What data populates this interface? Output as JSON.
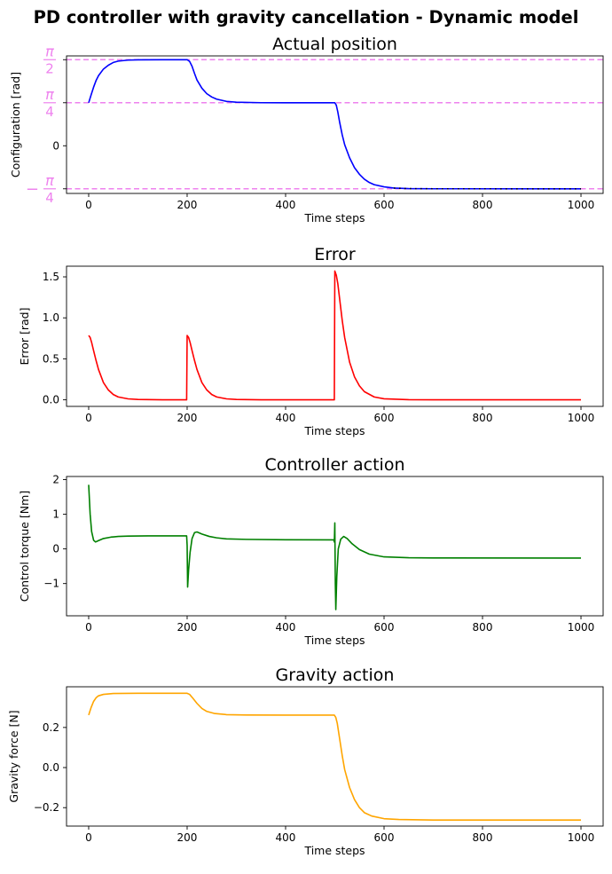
{
  "figure": {
    "suptitle": "PD controller with gravity cancellation - Dynamic model"
  },
  "colors": {
    "position": "#0000ff",
    "error": "#ff0000",
    "control": "#008000",
    "gravity": "#ffa500",
    "reference": "#ee82ee"
  },
  "chart_data": [
    {
      "id": "position",
      "type": "line",
      "title": "Actual position",
      "xlabel": "Time steps",
      "ylabel": "Configuration [rad]",
      "xlim": [
        -45,
        1045
      ],
      "ylim": [
        -0.87,
        1.64
      ],
      "xticks": [
        0,
        200,
        400,
        600,
        800,
        1000
      ],
      "yticks": [
        {
          "value": 1.5708,
          "label": "π/2",
          "fraction": true,
          "num": "π",
          "den": "2",
          "sign": ""
        },
        {
          "value": 0.7854,
          "label": "π/4",
          "fraction": true,
          "num": "π",
          "den": "4",
          "sign": ""
        },
        {
          "value": 0,
          "label": "0",
          "fraction": false
        },
        {
          "value": -0.7854,
          "label": "−π/4",
          "fraction": true,
          "num": "π",
          "den": "4",
          "sign": "−"
        }
      ],
      "reference_lines": [
        1.5708,
        0.7854,
        -0.7854
      ],
      "series": [
        {
          "color_key": "position",
          "points": [
            [
              0,
              0.785
            ],
            [
              5,
              0.93
            ],
            [
              10,
              1.07
            ],
            [
              15,
              1.19
            ],
            [
              20,
              1.28
            ],
            [
              30,
              1.4
            ],
            [
              40,
              1.47
            ],
            [
              50,
              1.52
            ],
            [
              60,
              1.545
            ],
            [
              80,
              1.563
            ],
            [
              100,
              1.568
            ],
            [
              150,
              1.5708
            ],
            [
              200,
              1.5708
            ],
            [
              205,
              1.54
            ],
            [
              210,
              1.45
            ],
            [
              215,
              1.32
            ],
            [
              220,
              1.2
            ],
            [
              230,
              1.05
            ],
            [
              240,
              0.95
            ],
            [
              250,
              0.89
            ],
            [
              260,
              0.85
            ],
            [
              280,
              0.81
            ],
            [
              300,
              0.795
            ],
            [
              350,
              0.786
            ],
            [
              400,
              0.7854
            ],
            [
              500,
              0.7854
            ],
            [
              503,
              0.74
            ],
            [
              506,
              0.62
            ],
            [
              510,
              0.42
            ],
            [
              515,
              0.2
            ],
            [
              520,
              0.02
            ],
            [
              530,
              -0.22
            ],
            [
              540,
              -0.4
            ],
            [
              550,
              -0.52
            ],
            [
              560,
              -0.61
            ],
            [
              570,
              -0.67
            ],
            [
              580,
              -0.71
            ],
            [
              600,
              -0.75
            ],
            [
              620,
              -0.772
            ],
            [
              650,
              -0.782
            ],
            [
              700,
              -0.785
            ],
            [
              1000,
              -0.7854
            ]
          ]
        }
      ]
    },
    {
      "id": "error",
      "type": "line",
      "title": "Error",
      "xlabel": "Time steps",
      "ylabel": "Error [rad]",
      "xlim": [
        -45,
        1045
      ],
      "ylim": [
        -0.08,
        1.63
      ],
      "xticks": [
        0,
        200,
        400,
        600,
        800,
        1000
      ],
      "yticks": [
        {
          "value": 0.0,
          "label": "0.0"
        },
        {
          "value": 0.5,
          "label": "0.5"
        },
        {
          "value": 1.0,
          "label": "1.0"
        },
        {
          "value": 1.5,
          "label": "1.5"
        }
      ],
      "series": [
        {
          "color_key": "error",
          "points": [
            [
              0,
              0.785
            ],
            [
              3,
              0.76
            ],
            [
              6,
              0.7
            ],
            [
              10,
              0.6
            ],
            [
              15,
              0.48
            ],
            [
              20,
              0.37
            ],
            [
              30,
              0.21
            ],
            [
              40,
              0.12
            ],
            [
              50,
              0.065
            ],
            [
              60,
              0.035
            ],
            [
              80,
              0.012
            ],
            [
              100,
              0.005
            ],
            [
              150,
              0.001
            ],
            [
              199,
              0.0
            ],
            [
              200,
              0.785
            ],
            [
              203,
              0.76
            ],
            [
              206,
              0.7
            ],
            [
              210,
              0.6
            ],
            [
              215,
              0.48
            ],
            [
              220,
              0.37
            ],
            [
              230,
              0.21
            ],
            [
              240,
              0.12
            ],
            [
              250,
              0.065
            ],
            [
              260,
              0.035
            ],
            [
              280,
              0.012
            ],
            [
              300,
              0.005
            ],
            [
              350,
              0.001
            ],
            [
              499,
              0.0
            ],
            [
              500,
              1.5708
            ],
            [
              503,
              1.52
            ],
            [
              506,
              1.42
            ],
            [
              510,
              1.22
            ],
            [
              515,
              0.97
            ],
            [
              520,
              0.76
            ],
            [
              530,
              0.46
            ],
            [
              540,
              0.28
            ],
            [
              550,
              0.17
            ],
            [
              560,
              0.1
            ],
            [
              580,
              0.035
            ],
            [
              600,
              0.013
            ],
            [
              650,
              0.002
            ],
            [
              700,
              0.0
            ],
            [
              1000,
              0.0
            ]
          ]
        }
      ]
    },
    {
      "id": "control",
      "type": "line",
      "title": "Controller action",
      "xlabel": "Time steps",
      "ylabel": "Control torque [Nm]",
      "xlim": [
        -45,
        1045
      ],
      "ylim": [
        -1.93,
        2.09
      ],
      "xticks": [
        0,
        200,
        400,
        600,
        800,
        1000
      ],
      "yticks": [
        {
          "value": -1,
          "label": "−1"
        },
        {
          "value": 0,
          "label": "0"
        },
        {
          "value": 1,
          "label": "1"
        },
        {
          "value": 2,
          "label": "2"
        }
      ],
      "series": [
        {
          "color_key": "control",
          "points": [
            [
              0,
              1.85
            ],
            [
              3,
              1.0
            ],
            [
              6,
              0.5
            ],
            [
              10,
              0.25
            ],
            [
              14,
              0.2
            ],
            [
              20,
              0.24
            ],
            [
              30,
              0.3
            ],
            [
              45,
              0.34
            ],
            [
              60,
              0.36
            ],
            [
              80,
              0.37
            ],
            [
              120,
              0.375
            ],
            [
              199,
              0.375
            ],
            [
              200,
              0.1
            ],
            [
              201,
              -1.1
            ],
            [
              203,
              -0.6
            ],
            [
              206,
              -0.1
            ],
            [
              210,
              0.3
            ],
            [
              215,
              0.47
            ],
            [
              220,
              0.49
            ],
            [
              230,
              0.43
            ],
            [
              245,
              0.36
            ],
            [
              260,
              0.32
            ],
            [
              280,
              0.29
            ],
            [
              320,
              0.275
            ],
            [
              400,
              0.265
            ],
            [
              498,
              0.26
            ],
            [
              499,
              0.2
            ],
            [
              500,
              0.75
            ],
            [
              501,
              -1.0
            ],
            [
              502,
              -1.75
            ],
            [
              504,
              -0.8
            ],
            [
              507,
              0.0
            ],
            [
              512,
              0.28
            ],
            [
              518,
              0.36
            ],
            [
              525,
              0.3
            ],
            [
              535,
              0.15
            ],
            [
              550,
              -0.02
            ],
            [
              570,
              -0.15
            ],
            [
              600,
              -0.23
            ],
            [
              650,
              -0.255
            ],
            [
              700,
              -0.26
            ],
            [
              1000,
              -0.265
            ]
          ]
        }
      ]
    },
    {
      "id": "gravity",
      "type": "line",
      "title": "Gravity action",
      "xlabel": "Time steps",
      "ylabel": "Gravity force [N]",
      "xlim": [
        -45,
        1045
      ],
      "ylim": [
        -0.292,
        0.403
      ],
      "xticks": [
        0,
        200,
        400,
        600,
        800,
        1000
      ],
      "yticks": [
        {
          "value": -0.2,
          "label": "−0.2"
        },
        {
          "value": 0.0,
          "label": "0.0"
        },
        {
          "value": 0.2,
          "label": "0.2"
        }
      ],
      "series": [
        {
          "color_key": "gravity",
          "points": [
            [
              0,
              0.262
            ],
            [
              5,
              0.3
            ],
            [
              10,
              0.33
            ],
            [
              15,
              0.348
            ],
            [
              20,
              0.358
            ],
            [
              30,
              0.365
            ],
            [
              50,
              0.3695
            ],
            [
              100,
              0.3705
            ],
            [
              200,
              0.3705
            ],
            [
              205,
              0.365
            ],
            [
              212,
              0.345
            ],
            [
              220,
              0.32
            ],
            [
              230,
              0.295
            ],
            [
              240,
              0.28
            ],
            [
              255,
              0.27
            ],
            [
              280,
              0.264
            ],
            [
              320,
              0.262
            ],
            [
              400,
              0.2618
            ],
            [
              499,
              0.2618
            ],
            [
              502,
              0.25
            ],
            [
              505,
              0.22
            ],
            [
              510,
              0.14
            ],
            [
              515,
              0.06
            ],
            [
              520,
              -0.01
            ],
            [
              530,
              -0.1
            ],
            [
              540,
              -0.16
            ],
            [
              550,
              -0.2
            ],
            [
              560,
              -0.225
            ],
            [
              575,
              -0.242
            ],
            [
              600,
              -0.255
            ],
            [
              630,
              -0.259
            ],
            [
              700,
              -0.2618
            ],
            [
              1000,
              -0.2618
            ]
          ]
        }
      ]
    }
  ]
}
